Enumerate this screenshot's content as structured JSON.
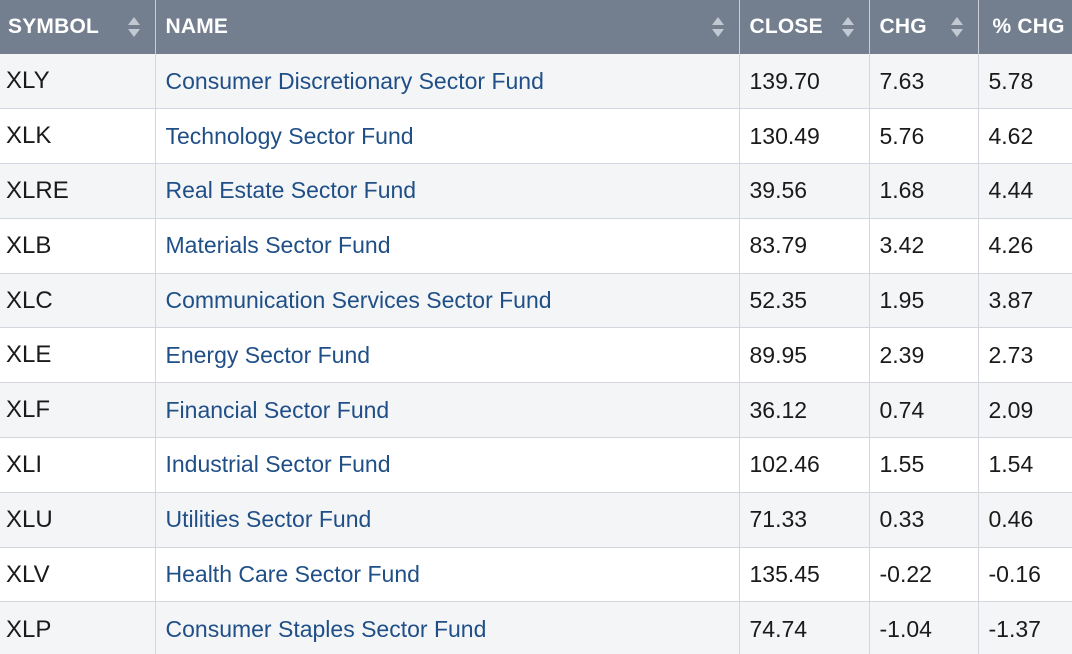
{
  "columns": [
    {
      "key": "symbol",
      "label": "SYMBOL",
      "sortable": true
    },
    {
      "key": "name",
      "label": "NAME",
      "sortable": true
    },
    {
      "key": "close",
      "label": "CLOSE",
      "sortable": true
    },
    {
      "key": "chg",
      "label": "CHG",
      "sortable": true
    },
    {
      "key": "pct_chg",
      "label": "% CHG",
      "sortable": false
    }
  ],
  "rows": [
    {
      "symbol": "XLY",
      "name": "Consumer Discretionary Sector Fund",
      "close": "139.70",
      "chg": "7.63",
      "pct_chg": "5.78"
    },
    {
      "symbol": "XLK",
      "name": "Technology Sector Fund",
      "close": "130.49",
      "chg": "5.76",
      "pct_chg": "4.62"
    },
    {
      "symbol": "XLRE",
      "name": "Real Estate Sector Fund",
      "close": "39.56",
      "chg": "1.68",
      "pct_chg": "4.44"
    },
    {
      "symbol": "XLB",
      "name": "Materials Sector Fund",
      "close": "83.79",
      "chg": "3.42",
      "pct_chg": "4.26"
    },
    {
      "symbol": "XLC",
      "name": "Communication Services Sector Fund",
      "close": "52.35",
      "chg": "1.95",
      "pct_chg": "3.87"
    },
    {
      "symbol": "XLE",
      "name": "Energy Sector Fund",
      "close": "89.95",
      "chg": "2.39",
      "pct_chg": "2.73"
    },
    {
      "symbol": "XLF",
      "name": "Financial Sector Fund",
      "close": "36.12",
      "chg": "0.74",
      "pct_chg": "2.09"
    },
    {
      "symbol": "XLI",
      "name": "Industrial Sector Fund",
      "close": "102.46",
      "chg": "1.55",
      "pct_chg": "1.54"
    },
    {
      "symbol": "XLU",
      "name": "Utilities Sector Fund",
      "close": "71.33",
      "chg": "0.33",
      "pct_chg": "0.46"
    },
    {
      "symbol": "XLV",
      "name": "Health Care Sector Fund",
      "close": "135.45",
      "chg": "-0.22",
      "pct_chg": "-0.16"
    },
    {
      "symbol": "XLP",
      "name": "Consumer Staples Sector Fund",
      "close": "74.74",
      "chg": "-1.04",
      "pct_chg": "-1.37"
    }
  ],
  "colors": {
    "header_bg": "#737e8f",
    "header_text": "#ffffff",
    "link": "#1f4f86",
    "row_alt": "#f4f5f7",
    "border": "#d3d7dd"
  },
  "icons": {
    "sort": "sort-icon"
  }
}
